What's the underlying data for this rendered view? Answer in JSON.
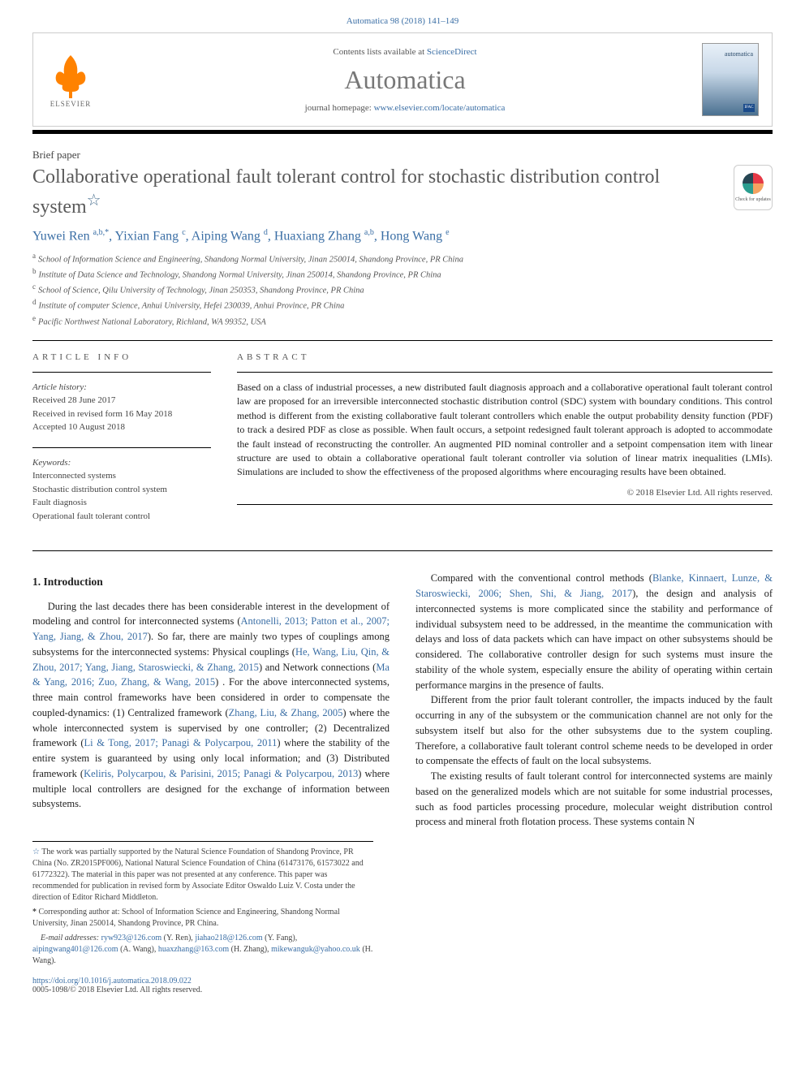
{
  "journal_ref": "Automatica 98 (2018) 141–149",
  "header": {
    "contents_prefix": "Contents lists available at ",
    "contents_link": "ScienceDirect",
    "journal_name": "Automatica",
    "home_prefix": "journal homepage: ",
    "home_link": "www.elsevier.com/locate/automatica",
    "elsevier_label": "ELSEVIER",
    "cover_word": "automatica",
    "cover_ifac": "IFAC"
  },
  "check_updates": "Check for updates",
  "paper_type": "Brief paper",
  "title": "Collaborative operational fault tolerant control for stochastic distribution control system",
  "authors_html": "Yuwei Ren <sup>a,b,*</sup>, Yixian Fang <sup>c</sup>, Aiping Wang <sup>d</sup>, Huaxiang Zhang <sup>a,b</sup>, Hong Wang <sup>e</sup>",
  "affiliations": [
    {
      "key": "a",
      "text": "School of Information Science and Engineering, Shandong Normal University, Jinan 250014, Shandong Province, PR China"
    },
    {
      "key": "b",
      "text": "Institute of Data Science and Technology, Shandong Normal University, Jinan 250014, Shandong Province, PR China"
    },
    {
      "key": "c",
      "text": "School of Science, Qilu University of Technology, Jinan 250353, Shandong Province, PR China"
    },
    {
      "key": "d",
      "text": "Institute of computer Science, Anhui University, Hefei 230039, Anhui Province, PR China"
    },
    {
      "key": "e",
      "text": "Pacific Northwest National Laboratory, Richland, WA 99352, USA"
    }
  ],
  "info": {
    "heading": "ARTICLE INFO",
    "history_label": "Article history:",
    "received": "Received 28 June 2017",
    "revised": "Received in revised form 16 May 2018",
    "accepted": "Accepted 10 August 2018",
    "keywords_label": "Keywords:",
    "keywords": [
      "Interconnected systems",
      "Stochastic distribution control system",
      "Fault diagnosis",
      "Operational fault tolerant control"
    ]
  },
  "abstract": {
    "heading": "ABSTRACT",
    "text": "Based on a class of industrial processes, a new distributed fault diagnosis approach and a collaborative operational fault tolerant control law are proposed for an irreversible interconnected stochastic distribution control (SDC) system with boundary conditions. This control method is different from the existing collaborative fault tolerant controllers which enable the output probability density function (PDF) to track a desired PDF as close as possible. When fault occurs, a setpoint redesigned fault tolerant approach is adopted to accommodate the fault instead of reconstructing the controller. An augmented PID nominal controller and a setpoint compensation item with linear structure are used to obtain a collaborative operational fault tolerant controller via solution of linear matrix inequalities (LMIs). Simulations are included to show the effectiveness of the proposed algorithms where encouraging results have been obtained.",
    "copyright": "© 2018 Elsevier Ltd. All rights reserved."
  },
  "body": {
    "section_title": "1. Introduction",
    "p1_pre": "During the last decades there has been considerable interest in the development of modeling and control for interconnected systems (",
    "p1_cite1": "Antonelli, 2013; Patton et al., 2007; Yang, Jiang, & Zhou, 2017",
    "p1_mid1": "). So far, there are mainly two types of couplings among subsystems for the interconnected systems: Physical couplings (",
    "p1_cite2": "He, Wang, Liu, Qin, & Zhou, 2017; Yang, Jiang, Staroswiecki, & Zhang, 2015",
    "p1_mid2": ") and Network connections (",
    "p1_cite3": "Ma & Yang, 2016; Zuo, Zhang, & Wang, 2015",
    "p1_mid3": ") . For the above interconnected systems, three main control frameworks have been considered in order to compensate the coupled-dynamics: (1) Centralized framework (",
    "p1_cite4": "Zhang, Liu, & Zhang, 2005",
    "p1_mid4": ") where the whole interconnected system is supervised by one controller; (2) Decentralized framework (",
    "p1_cite5": "Li & Tong, 2017; Panagi & Polycarpou, 2011",
    "p1_post": ") where the stability of the ",
    "p2_pre": "entire system is guaranteed by using only local information; and (3) Distributed framework (",
    "p2_cite1": "Keliris, Polycarpou, & Parisini, 2015; Panagi & Polycarpou, 2013",
    "p2_post": ") where multiple local controllers are designed for the exchange of information between subsystems.",
    "p3_pre": "Compared with the conventional control methods (",
    "p3_cite1": "Blanke, Kinnaert, Lunze, & Staroswiecki, 2006; Shen, Shi, & Jiang, 2017",
    "p3_post": "), the design and analysis of interconnected systems is more complicated since the stability and performance of individual subsystem need to be addressed, in the meantime the communication with delays and loss of data packets which can have impact on other subsystems should be considered. The collaborative controller design for such systems must insure the stability of the whole system, especially ensure the ability of operating within certain performance margins in the presence of faults.",
    "p4": "Different from the prior fault tolerant controller, the impacts induced by the fault occurring in any of the subsystem or the communication channel are not only for the subsystem itself but also for the other subsystems due to the system coupling. Therefore, a collaborative fault tolerant control scheme needs to be developed in order to compensate the effects of fault on the local subsystems.",
    "p5": "The existing results of fault tolerant control for interconnected systems are mainly based on the generalized models which are not suitable for some industrial processes, such as food particles processing procedure, molecular weight distribution control process and mineral froth flotation process. These systems contain N"
  },
  "footnotes": {
    "funding": "The work was partially supported by the Natural Science Foundation of Shandong Province, PR China (No. ZR2015PF006), National Natural Science Foundation of China (61473176, 61573022 and 61772322). The material in this paper was not presented at any conference. This paper was recommended for publication in revised form by Associate Editor Oswaldo Luiz V. Costa under the direction of Editor Richard Middleton.",
    "corresp": "Corresponding author at: School of Information Science and Engineering, Shandong Normal University, Jinan 250014, Shandong Province, PR China.",
    "emails_label": "E-mail addresses: ",
    "emails": [
      {
        "addr": "ryw923@126.com",
        "who": "(Y. Ren)"
      },
      {
        "addr": "jiahao218@126.com",
        "who": "(Y. Fang)"
      },
      {
        "addr": "aipingwang401@126.com",
        "who": "(A. Wang)"
      },
      {
        "addr": "huaxzhang@163.com",
        "who": "(H. Zhang)"
      },
      {
        "addr": "mikewanguk@yahoo.co.uk",
        "who": "(H. Wang)"
      }
    ]
  },
  "doi": "https://doi.org/10.1016/j.automatica.2018.09.022",
  "issn": "0005-1098/© 2018 Elsevier Ltd. All rights reserved.",
  "colors": {
    "link": "#3a6ea5",
    "elsevier_orange": "#ff8200",
    "title_gray": "#5a5a5a",
    "text": "#222222"
  }
}
